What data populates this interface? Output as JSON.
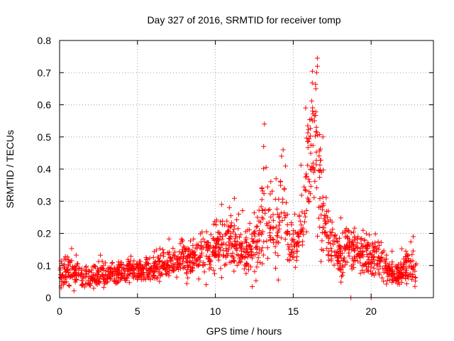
{
  "chart_data": {
    "type": "scatter",
    "title": "Day 327 of 2016, SRMTID for receiver tomp",
    "xlabel": "GPS time / hours",
    "ylabel": "SRMTID / TECUs",
    "xlim": [
      0,
      24
    ],
    "ylim": [
      0,
      0.8
    ],
    "xticks": [
      0,
      5,
      10,
      15,
      20
    ],
    "xtick_labels": [
      "0",
      "5",
      "10",
      "15",
      "20"
    ],
    "yticks": [
      0,
      0.1,
      0.2,
      0.3,
      0.4,
      0.5,
      0.6,
      0.7,
      0.8
    ],
    "ytick_labels": [
      "0",
      "0.1",
      "0.2",
      "0.3",
      "0.4",
      "0.5",
      "0.6",
      "0.7",
      "0.8"
    ],
    "grid": true,
    "marker": "+",
    "marker_color": "#ff0000",
    "series": [
      {
        "name": "SRMTID",
        "envelope": [
          {
            "x": 0.0,
            "base": 0.075,
            "spread": 0.035
          },
          {
            "x": 0.5,
            "base": 0.085,
            "spread": 0.04
          },
          {
            "x": 1.0,
            "base": 0.075,
            "spread": 0.035
          },
          {
            "x": 2.0,
            "base": 0.065,
            "spread": 0.03
          },
          {
            "x": 3.0,
            "base": 0.07,
            "spread": 0.03
          },
          {
            "x": 4.0,
            "base": 0.08,
            "spread": 0.025
          },
          {
            "x": 5.0,
            "base": 0.085,
            "spread": 0.025
          },
          {
            "x": 6.0,
            "base": 0.09,
            "spread": 0.03
          },
          {
            "x": 7.0,
            "base": 0.1,
            "spread": 0.04
          },
          {
            "x": 8.0,
            "base": 0.12,
            "spread": 0.045
          },
          {
            "x": 9.0,
            "base": 0.13,
            "spread": 0.045
          },
          {
            "x": 10.0,
            "base": 0.15,
            "spread": 0.06
          },
          {
            "x": 10.5,
            "base": 0.17,
            "spread": 0.07
          },
          {
            "x": 11.0,
            "base": 0.16,
            "spread": 0.07
          },
          {
            "x": 12.0,
            "base": 0.14,
            "spread": 0.06
          },
          {
            "x": 12.8,
            "base": 0.16,
            "spread": 0.07
          },
          {
            "x": 13.2,
            "base": 0.3,
            "spread": 0.14
          },
          {
            "x": 13.6,
            "base": 0.2,
            "spread": 0.08
          },
          {
            "x": 14.0,
            "base": 0.2,
            "spread": 0.08
          },
          {
            "x": 14.3,
            "base": 0.32,
            "spread": 0.14
          },
          {
            "x": 14.7,
            "base": 0.18,
            "spread": 0.07
          },
          {
            "x": 15.2,
            "base": 0.16,
            "spread": 0.06
          },
          {
            "x": 15.6,
            "base": 0.25,
            "spread": 0.08
          },
          {
            "x": 16.0,
            "base": 0.4,
            "spread": 0.15
          },
          {
            "x": 16.4,
            "base": 0.48,
            "spread": 0.2
          },
          {
            "x": 16.8,
            "base": 0.32,
            "spread": 0.15
          },
          {
            "x": 17.2,
            "base": 0.18,
            "spread": 0.07
          },
          {
            "x": 17.6,
            "base": 0.15,
            "spread": 0.06
          },
          {
            "x": 18.0,
            "base": 0.14,
            "spread": 0.06
          },
          {
            "x": 18.5,
            "base": 0.15,
            "spread": 0.06
          },
          {
            "x": 19.0,
            "base": 0.14,
            "spread": 0.05
          },
          {
            "x": 20.0,
            "base": 0.13,
            "spread": 0.05
          },
          {
            "x": 21.0,
            "base": 0.09,
            "spread": 0.04
          },
          {
            "x": 21.5,
            "base": 0.06,
            "spread": 0.025
          },
          {
            "x": 22.0,
            "base": 0.08,
            "spread": 0.04
          },
          {
            "x": 22.5,
            "base": 0.1,
            "spread": 0.05
          },
          {
            "x": 22.9,
            "base": 0.08,
            "spread": 0.03
          }
        ],
        "x_range": [
          0,
          22.9
        ],
        "n_points": 1600,
        "peaks": [
          {
            "x": 13.15,
            "y": 0.54
          },
          {
            "x": 13.1,
            "y": 0.47
          },
          {
            "x": 14.35,
            "y": 0.46
          },
          {
            "x": 14.25,
            "y": 0.44
          },
          {
            "x": 15.8,
            "y": 0.59
          },
          {
            "x": 16.25,
            "y": 0.55
          },
          {
            "x": 16.45,
            "y": 0.65
          },
          {
            "x": 16.55,
            "y": 0.745
          },
          {
            "x": 16.55,
            "y": 0.72
          },
          {
            "x": 16.5,
            "y": 0.7
          },
          {
            "x": 16.9,
            "y": 0.5
          },
          {
            "x": 10.4,
            "y": 0.29
          },
          {
            "x": 10.9,
            "y": 0.28
          },
          {
            "x": 11.5,
            "y": 0.26
          },
          {
            "x": 12.7,
            "y": 0.25
          },
          {
            "x": 13.9,
            "y": 0.37
          },
          {
            "x": 15.1,
            "y": 0.26
          },
          {
            "x": 22.7,
            "y": 0.19
          },
          {
            "x": 18.7,
            "y": 0.0
          },
          {
            "x": 20.0,
            "y": 0.0
          }
        ]
      }
    ]
  }
}
